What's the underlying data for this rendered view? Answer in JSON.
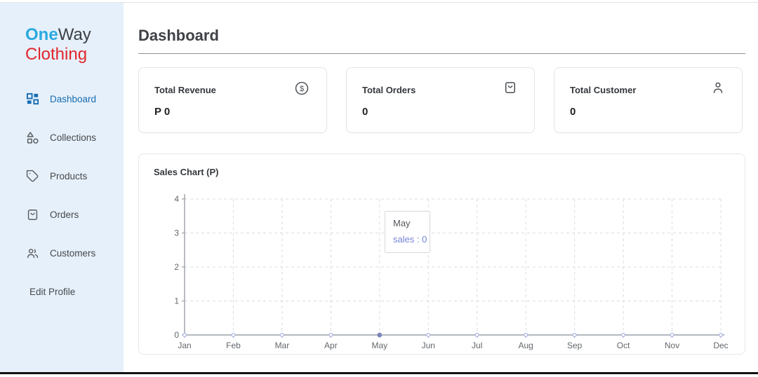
{
  "brand": {
    "one": "One",
    "way": "Way",
    "clothing": "Clothing"
  },
  "sidebar": {
    "items": [
      {
        "label": "Dashboard",
        "icon": "dashboard-icon",
        "active": true
      },
      {
        "label": "Collections",
        "icon": "category-icon",
        "active": false
      },
      {
        "label": "Products",
        "icon": "tag-icon",
        "active": false
      },
      {
        "label": "Orders",
        "icon": "bag-icon",
        "active": false
      },
      {
        "label": "Customers",
        "icon": "people-icon",
        "active": false
      },
      {
        "label": "Edit Profile",
        "icon": "none",
        "active": false
      }
    ]
  },
  "header": {
    "title": "Dashboard"
  },
  "stats": [
    {
      "label": "Total Revenue",
      "value": "P 0",
      "icon": "dollar-circle-icon",
      "icon_glyph": "$"
    },
    {
      "label": "Total Orders",
      "value": "0",
      "icon": "bag-icon"
    },
    {
      "label": "Total Customer",
      "value": "0",
      "icon": "person-icon"
    }
  ],
  "chart_data": {
    "type": "line",
    "title": "Sales Chart (P)",
    "categories": [
      "Jan",
      "Feb",
      "Mar",
      "Apr",
      "May",
      "Jun",
      "Jul",
      "Aug",
      "Sep",
      "Oct",
      "Nov",
      "Dec"
    ],
    "series": [
      {
        "name": "sales",
        "values": [
          0,
          0,
          0,
          0,
          0,
          0,
          0,
          0,
          0,
          0,
          0,
          0
        ]
      }
    ],
    "ylim": [
      0,
      4
    ],
    "yticks": [
      0,
      1,
      2,
      3,
      4
    ],
    "grid": "dashed",
    "legend_position": "none",
    "tooltip": {
      "month": "May",
      "text": "sales : 0"
    },
    "colors": {
      "axis": "#9aa0a6",
      "grid": "#dadce0",
      "tick_text": "#63676b",
      "point_stroke": "#a9b6e8",
      "point_fill": "#ffffff",
      "active_point": "#7b87ba",
      "tooltip_value": "#7585d6"
    }
  }
}
